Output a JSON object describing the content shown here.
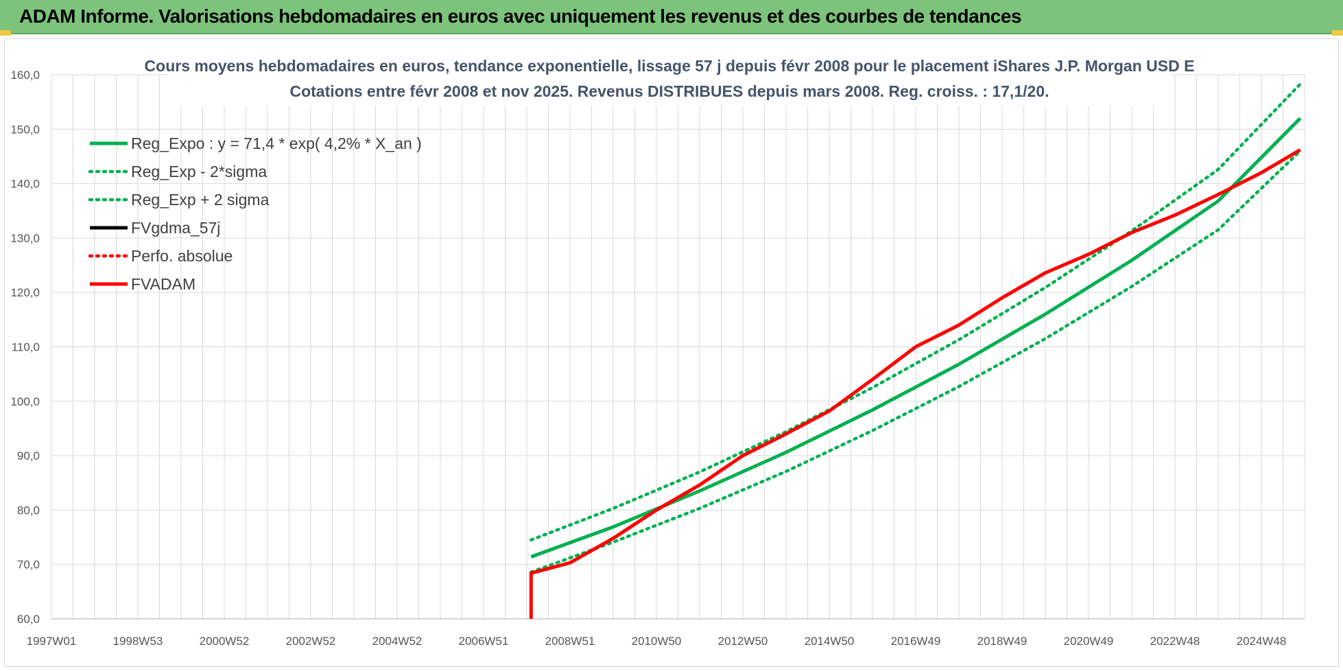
{
  "banner": {
    "title": "ADAM Informe. Valorisations hebdomadaires en euros avec uniquement les revenus et des courbes de tendances"
  },
  "colors": {
    "banner_bg": "#7cc47c",
    "trend": "#00b050",
    "fv_adam": "#ff0000",
    "fv_gdma": "#000000",
    "grid": "#d9d9d9"
  },
  "chart_data": {
    "type": "line",
    "title": "Cours moyens hebdomadaires en euros, tendance exponentielle, lissage 57 j depuis févr 2008 pour le placement iShares J.P. Morgan USD E",
    "subtitle": "Cotations entre févr 2008 et nov 2025. Revenus DISTRIBUES depuis mars 2008. Reg. croiss. : 17,1/20.",
    "x_tick_labels": [
      "1997W01",
      "1998W53",
      "2000W52",
      "2002W52",
      "2004W52",
      "2006W51",
      "2008W51",
      "2010W50",
      "2012W50",
      "2014W50",
      "2016W49",
      "2018W49",
      "2020W49",
      "2022W48",
      "2024W48"
    ],
    "x_range": [
      1997.0,
      2026.0
    ],
    "ylim": [
      60,
      160
    ],
    "y_ticks": [
      "60,0",
      "70,0",
      "80,0",
      "90,0",
      "100,0",
      "110,0",
      "120,0",
      "130,0",
      "140,0",
      "150,0",
      "160,0"
    ],
    "grid": true,
    "legend_position": "top-left",
    "series": [
      {
        "name": "Reg_Expo : y = 71,4 * exp( 4,2% *  X_an )",
        "color": "#00b050",
        "style": "solid",
        "x": [
          2008.1,
          2010,
          2012,
          2014,
          2016,
          2018,
          2020,
          2022,
          2024,
          2025.9
        ],
        "values": [
          71.4,
          76.9,
          83.5,
          90.6,
          98.4,
          106.8,
          116.0,
          125.9,
          136.8,
          152.0
        ]
      },
      {
        "name": "Reg_Exp - 2*sigma",
        "color": "#00b050",
        "style": "dotted",
        "x": [
          2008.1,
          2010,
          2012,
          2014,
          2016,
          2018,
          2020,
          2022,
          2024,
          2025.9
        ],
        "values": [
          68.6,
          74.1,
          80.3,
          87.1,
          94.6,
          102.7,
          111.5,
          121.1,
          131.5,
          146.0
        ]
      },
      {
        "name": "Reg_Exp + 2 sigma",
        "color": "#00b050",
        "style": "dotted",
        "x": [
          2008.1,
          2010,
          2012,
          2014,
          2016,
          2018,
          2020,
          2022,
          2024,
          2025.9
        ],
        "values": [
          74.5,
          80.3,
          87.0,
          94.4,
          102.5,
          111.3,
          120.9,
          131.3,
          142.6,
          158.3
        ]
      },
      {
        "name": "FVgdma_57j",
        "color": "#000000",
        "style": "solid",
        "x": [],
        "values": []
      },
      {
        "name": "Perfo. absolue",
        "color": "#ff0000",
        "style": "dotted",
        "x": [
          2008.1,
          2009,
          2010,
          2011,
          2012,
          2013,
          2014,
          2015,
          2016,
          2017,
          2018,
          2019,
          2020,
          2021,
          2022,
          2023,
          2024,
          2025,
          2025.9
        ],
        "values": [
          68.4,
          70.3,
          74.8,
          80.0,
          84.6,
          90.0,
          94.0,
          98.2,
          104.0,
          110.0,
          114.0,
          119.0,
          123.6,
          127.0,
          131.0,
          134.2,
          138.0,
          142.0,
          146.2
        ]
      },
      {
        "name": "FVADAM",
        "color": "#ff0000",
        "style": "solid",
        "x": [
          2008.1,
          2008.1,
          2009,
          2010,
          2011,
          2012,
          2013,
          2014,
          2015,
          2016,
          2017,
          2018,
          2019,
          2020,
          2021,
          2022,
          2023,
          2024,
          2025,
          2025.9
        ],
        "values": [
          60.0,
          68.4,
          70.3,
          74.8,
          80.0,
          84.6,
          90.0,
          94.0,
          98.2,
          104.0,
          110.0,
          114.0,
          119.0,
          123.6,
          127.0,
          131.0,
          134.2,
          138.0,
          142.0,
          146.2
        ]
      }
    ]
  }
}
